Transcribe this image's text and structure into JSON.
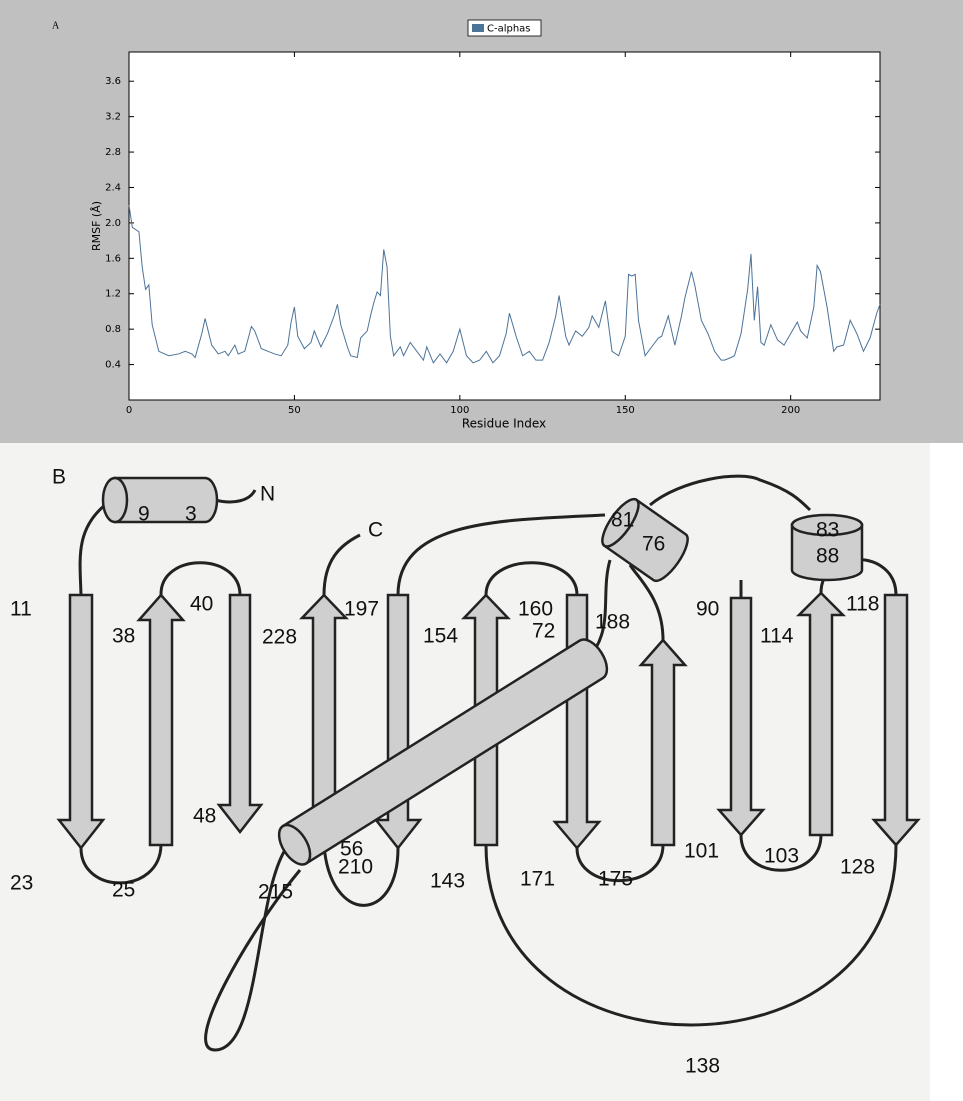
{
  "chart_data": {
    "type": "line",
    "panel_label": "A",
    "xlabel": "Residue Index",
    "ylabel": "RMSF (Å)",
    "xlim": [
      0,
      227
    ],
    "ylim": [
      0,
      3.93
    ],
    "xticks": [
      0,
      50,
      100,
      150,
      200
    ],
    "yticks": [
      0.4,
      0.8,
      1.2,
      1.6,
      {
        "value": 2.0,
        "label": "2.0"
      },
      2.4,
      2.8,
      3.2,
      3.6
    ],
    "x": [
      0,
      1,
      3,
      4,
      5,
      6,
      7,
      9,
      12,
      15,
      17,
      19,
      20,
      22,
      23,
      25,
      27,
      29,
      30,
      32,
      33,
      35,
      37,
      38,
      40,
      42,
      44,
      46,
      48,
      49,
      50,
      51,
      53,
      55,
      56,
      58,
      60,
      62,
      63,
      64,
      66,
      67,
      69,
      70,
      72,
      73,
      74,
      75,
      76,
      77,
      78,
      79,
      80,
      82,
      83,
      85,
      87,
      89,
      90,
      92,
      94,
      96,
      98,
      100,
      102,
      104,
      106,
      108,
      110,
      112,
      114,
      115,
      117,
      119,
      121,
      123,
      125,
      127,
      129,
      130,
      132,
      133,
      135,
      137,
      139,
      140,
      142,
      144,
      146,
      148,
      150,
      151,
      152,
      153,
      154,
      156,
      158,
      160,
      161,
      163,
      165,
      167,
      168,
      170,
      171,
      173,
      175,
      177,
      179,
      180,
      182,
      183,
      185,
      187,
      188,
      189,
      190,
      191,
      192,
      194,
      196,
      198,
      200,
      202,
      203,
      205,
      207,
      208,
      209,
      211,
      213,
      214,
      216,
      218,
      220,
      222,
      224,
      226,
      227
    ],
    "series": [
      {
        "name": "C-alphas",
        "color": "#4c7398",
        "values": [
          2.2,
          1.95,
          1.9,
          1.5,
          1.25,
          1.3,
          0.85,
          0.55,
          0.5,
          0.52,
          0.55,
          0.52,
          0.48,
          0.75,
          0.92,
          0.62,
          0.52,
          0.55,
          0.5,
          0.62,
          0.52,
          0.55,
          0.83,
          0.78,
          0.58,
          0.55,
          0.52,
          0.5,
          0.62,
          0.88,
          1.05,
          0.72,
          0.58,
          0.65,
          0.78,
          0.6,
          0.75,
          0.95,
          1.08,
          0.85,
          0.6,
          0.5,
          0.48,
          0.7,
          0.78,
          0.95,
          1.1,
          1.22,
          1.18,
          1.7,
          1.5,
          0.72,
          0.5,
          0.6,
          0.5,
          0.65,
          0.55,
          0.45,
          0.6,
          0.42,
          0.52,
          0.42,
          0.55,
          0.8,
          0.5,
          0.42,
          0.45,
          0.55,
          0.42,
          0.5,
          0.75,
          0.98,
          0.72,
          0.5,
          0.55,
          0.45,
          0.45,
          0.65,
          0.95,
          1.18,
          0.72,
          0.62,
          0.78,
          0.72,
          0.82,
          0.95,
          0.82,
          1.12,
          0.55,
          0.5,
          0.72,
          1.42,
          1.4,
          1.42,
          0.9,
          0.5,
          0.6,
          0.7,
          0.72,
          0.95,
          0.62,
          0.95,
          1.15,
          1.45,
          1.3,
          0.9,
          0.75,
          0.55,
          0.45,
          0.45,
          0.48,
          0.5,
          0.75,
          1.25,
          1.65,
          0.9,
          1.28,
          0.65,
          0.62,
          0.85,
          0.68,
          0.62,
          0.75,
          0.88,
          0.78,
          0.7,
          1.05,
          1.52,
          1.45,
          1.05,
          0.55,
          0.6,
          0.62,
          0.9,
          0.75,
          0.55,
          0.7,
          0.98,
          1.08
        ]
      }
    ]
  },
  "diagram": {
    "panel_label": "B",
    "labels": [
      "9",
      "3",
      "N",
      "C",
      "11",
      "38",
      "40",
      "228",
      "197",
      "154",
      "160",
      "81",
      "76",
      "83",
      "88",
      "90",
      "114",
      "118",
      "72",
      "188",
      "48",
      "56",
      "23",
      "25",
      "215",
      "210",
      "143",
      "171",
      "175",
      "101",
      "103",
      "128",
      "138"
    ]
  }
}
